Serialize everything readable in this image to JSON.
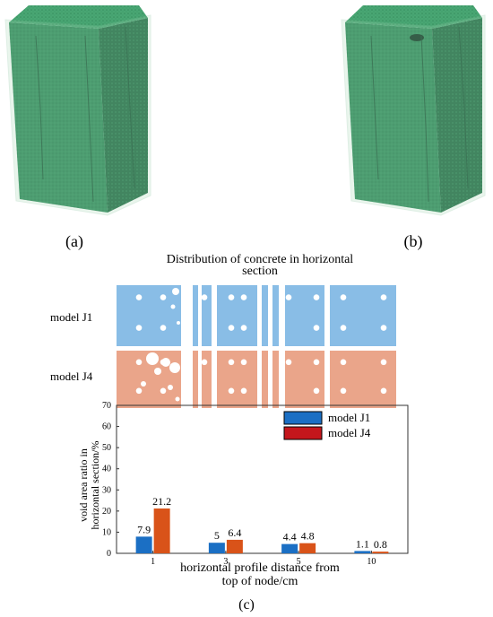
{
  "panels": {
    "a": "(a)",
    "b": "(b)",
    "c": "(c)"
  },
  "section_title_line1": "Distribution of concrete in horizontal",
  "section_title_line2": "section",
  "row_labels": [
    "model J1",
    "model J4"
  ],
  "colors": {
    "j1": "#1b6fc4",
    "j4": "#d95319",
    "j1_section": "#89bde6",
    "j4_section": "#eaa58a",
    "column_face": "#2e8a5a",
    "column_dark": "#1f6a43",
    "column_light": "#49a673",
    "shell": "#a9d8b8"
  },
  "chart_data": {
    "type": "bar",
    "categories": [
      "1",
      "3",
      "5",
      "10"
    ],
    "series": [
      {
        "name": "model J1",
        "values": [
          7.9,
          5,
          4.4,
          1.1
        ]
      },
      {
        "name": "model J4",
        "values": [
          21.2,
          6.4,
          4.8,
          0.8
        ]
      }
    ],
    "data_labels": [
      [
        "7.9",
        "5",
        "4.4",
        "1.1"
      ],
      [
        "21.2",
        "6.4",
        "4.8",
        "0.8"
      ]
    ],
    "ylim": [
      0,
      70
    ],
    "yticks": [
      "0",
      "10",
      "20",
      "30",
      "40",
      "50",
      "60",
      "70"
    ],
    "ylabel_line1": "void area ratio in",
    "ylabel_line2": "horizontal section/%",
    "xlabel_line1": "horizontal profile distance from",
    "xlabel_line2": "top of node/cm",
    "legend": [
      "model J1",
      "model J4"
    ],
    "legend_position": "top-right",
    "grid": false
  }
}
